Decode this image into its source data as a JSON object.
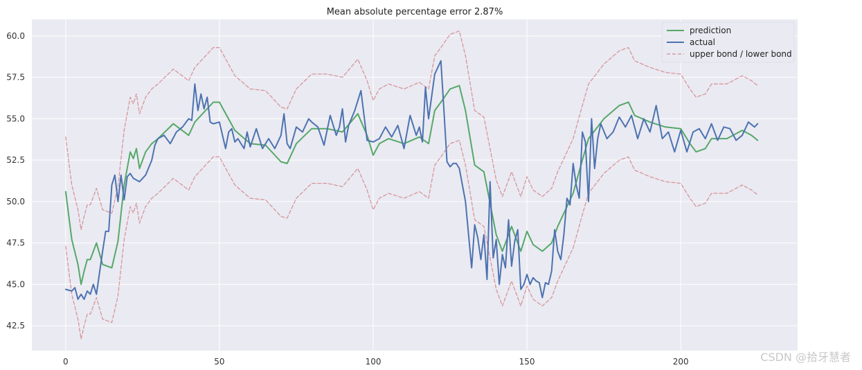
{
  "chart_data": {
    "type": "line",
    "title": "Mean absolute percentage error 2.87%",
    "xlabel": "",
    "ylabel": "",
    "xlim": [
      -11,
      238
    ],
    "ylim": [
      41.0,
      61.0
    ],
    "xticks": [
      0,
      50,
      100,
      150,
      200
    ],
    "yticks": [
      42.5,
      45.0,
      47.5,
      50.0,
      52.5,
      55.0,
      57.5,
      60.0
    ],
    "xtick_labels": [
      "0",
      "50",
      "100",
      "150",
      "200"
    ],
    "ytick_labels": [
      "42.5",
      "45.0",
      "47.5",
      "50.0",
      "52.5",
      "55.0",
      "57.5",
      "60.0"
    ],
    "grid": true,
    "legend_position": "top-right",
    "series": [
      {
        "name": "prediction",
        "color": "#55a868",
        "style": "solid",
        "x": [
          0,
          2,
          4,
          5,
          6,
          7,
          8,
          10,
          12,
          15,
          17,
          19,
          21,
          22,
          23,
          24,
          26,
          28,
          30,
          35,
          40,
          42,
          45,
          48,
          50,
          55,
          60,
          65,
          70,
          72,
          75,
          80,
          85,
          90,
          95,
          98,
          100,
          102,
          105,
          110,
          115,
          118,
          120,
          122,
          125,
          128,
          130,
          133,
          136,
          140,
          142,
          145,
          148,
          150,
          152,
          155,
          158,
          160,
          165,
          168,
          170,
          175,
          180,
          183,
          185,
          190,
          195,
          200,
          203,
          205,
          208,
          210,
          215,
          220,
          223,
          225
        ],
        "values": [
          50.6,
          47.7,
          46.2,
          45.0,
          45.8,
          46.5,
          46.5,
          47.5,
          46.2,
          46.0,
          47.6,
          51.0,
          53.0,
          52.6,
          53.2,
          52.0,
          53.0,
          53.5,
          53.8,
          54.7,
          54.0,
          54.8,
          55.4,
          56.0,
          56.0,
          54.3,
          53.5,
          53.4,
          52.4,
          52.3,
          53.5,
          54.4,
          54.4,
          54.2,
          55.3,
          54.0,
          52.8,
          53.5,
          53.8,
          53.5,
          53.9,
          53.5,
          55.5,
          56.0,
          56.8,
          57.0,
          55.5,
          52.2,
          51.8,
          48.0,
          47.0,
          48.5,
          47.0,
          48.2,
          47.4,
          47.0,
          47.5,
          48.5,
          50.5,
          52.5,
          53.8,
          55.0,
          55.8,
          56.0,
          55.2,
          54.8,
          54.5,
          54.4,
          53.5,
          53.0,
          53.2,
          53.8,
          53.8,
          54.3,
          54.0,
          53.7
        ]
      },
      {
        "name": "actual",
        "color": "#4c72b0",
        "style": "solid",
        "x": [
          0,
          2,
          3,
          4,
          5,
          6,
          7,
          8,
          9,
          10,
          12,
          13,
          14,
          15,
          16,
          17,
          18,
          19,
          20,
          21,
          22,
          24,
          26,
          28,
          29,
          30,
          32,
          34,
          36,
          38,
          40,
          41,
          42,
          43,
          44,
          45,
          46,
          47,
          48,
          50,
          52,
          53,
          54,
          55,
          56,
          58,
          59,
          60,
          62,
          64,
          66,
          68,
          70,
          71,
          72,
          73,
          75,
          77,
          79,
          80,
          82,
          84,
          86,
          88,
          89,
          90,
          91,
          92,
          94,
          96,
          98,
          100,
          102,
          104,
          106,
          108,
          110,
          112,
          114,
          115,
          116,
          117,
          118,
          120,
          122,
          123,
          124,
          125,
          126,
          127,
          128,
          130,
          132,
          133,
          134,
          135,
          136,
          137,
          138,
          139,
          140,
          141,
          142,
          143,
          144,
          145,
          146,
          147,
          148,
          149,
          150,
          151,
          152,
          153,
          154,
          155,
          156,
          157,
          158,
          159,
          160,
          161,
          162,
          163,
          164,
          165,
          166,
          167,
          168,
          169,
          170,
          171,
          172,
          173,
          174,
          176,
          178,
          180,
          182,
          184,
          186,
          188,
          190,
          192,
          194,
          196,
          198,
          200,
          202,
          204,
          206,
          208,
          210,
          212,
          214,
          216,
          218,
          220,
          222,
          224,
          225
        ],
        "values": [
          44.7,
          44.6,
          44.8,
          44.1,
          44.4,
          44.1,
          44.6,
          44.4,
          45.0,
          44.4,
          47.0,
          48.2,
          48.2,
          51.0,
          51.6,
          50.0,
          51.6,
          50.1,
          51.5,
          51.7,
          51.4,
          51.2,
          51.6,
          52.5,
          53.4,
          53.8,
          54.0,
          53.5,
          54.2,
          54.5,
          55.0,
          54.9,
          57.1,
          55.5,
          56.5,
          55.6,
          56.3,
          54.8,
          54.7,
          54.8,
          53.2,
          54.2,
          54.4,
          53.6,
          53.8,
          53.2,
          54.2,
          53.3,
          54.4,
          53.2,
          53.8,
          53.2,
          54.0,
          55.3,
          53.5,
          53.2,
          54.5,
          54.2,
          55.0,
          54.8,
          54.5,
          53.4,
          55.2,
          54.0,
          54.5,
          55.6,
          53.6,
          54.6,
          55.5,
          56.7,
          53.7,
          53.6,
          53.8,
          54.5,
          53.9,
          54.6,
          53.2,
          55.2,
          54.0,
          54.5,
          53.6,
          56.9,
          55.0,
          57.7,
          58.5,
          55.5,
          52.4,
          52.1,
          52.3,
          52.3,
          52.0,
          50.0,
          46.0,
          48.6,
          47.8,
          46.5,
          48.0,
          45.3,
          51.2,
          46.6,
          47.7,
          45.0,
          46.8,
          46.0,
          48.9,
          46.1,
          47.6,
          48.3,
          44.7,
          45.0,
          45.6,
          45.0,
          45.4,
          45.2,
          45.1,
          44.2,
          45.1,
          45.0,
          45.8,
          48.3,
          47.0,
          46.5,
          48.0,
          50.2,
          49.8,
          52.3,
          51.0,
          50.2,
          54.2,
          53.6,
          50.0,
          55.0,
          52.0,
          53.8,
          54.7,
          53.8,
          54.2,
          55.1,
          54.5,
          55.2,
          53.8,
          55.0,
          54.2,
          55.8,
          53.8,
          54.2,
          53.0,
          54.3,
          53.0,
          54.2,
          54.4,
          53.8,
          54.7,
          53.7,
          54.5,
          54.4,
          53.7,
          54.0,
          54.8,
          54.5,
          54.7
        ]
      },
      {
        "name": "upper bond / lower bond",
        "color": "#c44e52",
        "style": "dashed",
        "x": [
          0,
          2,
          4,
          5,
          6,
          7,
          8,
          10,
          12,
          15,
          17,
          19,
          21,
          22,
          23,
          24,
          26,
          28,
          30,
          35,
          40,
          42,
          45,
          48,
          50,
          55,
          60,
          65,
          70,
          72,
          75,
          80,
          85,
          90,
          95,
          98,
          100,
          102,
          105,
          110,
          115,
          118,
          120,
          122,
          125,
          128,
          130,
          133,
          136,
          140,
          142,
          145,
          148,
          150,
          152,
          155,
          158,
          160,
          165,
          168,
          170,
          175,
          180,
          183,
          185,
          190,
          195,
          200,
          203,
          205,
          208,
          210,
          215,
          220,
          223,
          225
        ],
        "values": [
          53.9,
          51.0,
          49.5,
          48.3,
          49.1,
          49.8,
          49.8,
          50.8,
          49.5,
          49.3,
          50.9,
          54.3,
          56.3,
          55.9,
          56.5,
          55.3,
          56.3,
          56.8,
          57.1,
          58.0,
          57.3,
          58.1,
          58.7,
          59.3,
          59.3,
          57.6,
          56.8,
          56.7,
          55.7,
          55.6,
          56.8,
          57.7,
          57.7,
          57.5,
          58.6,
          57.3,
          56.1,
          56.8,
          57.1,
          56.8,
          57.2,
          56.8,
          58.8,
          59.3,
          60.1,
          60.3,
          58.8,
          55.5,
          55.1,
          51.3,
          50.3,
          51.8,
          50.3,
          51.5,
          50.7,
          50.3,
          50.8,
          51.8,
          53.8,
          55.8,
          57.1,
          58.3,
          59.1,
          59.3,
          58.5,
          58.1,
          57.8,
          57.7,
          56.8,
          56.3,
          56.5,
          57.1,
          57.1,
          57.6,
          57.3,
          57.0
        ]
      },
      {
        "name": "",
        "color": "#c44e52",
        "style": "dashed",
        "x": [
          0,
          2,
          4,
          5,
          6,
          7,
          8,
          10,
          12,
          15,
          17,
          19,
          21,
          22,
          23,
          24,
          26,
          28,
          30,
          35,
          40,
          42,
          45,
          48,
          50,
          55,
          60,
          65,
          70,
          72,
          75,
          80,
          85,
          90,
          95,
          98,
          100,
          102,
          105,
          110,
          115,
          118,
          120,
          122,
          125,
          128,
          130,
          133,
          136,
          140,
          142,
          145,
          148,
          150,
          152,
          155,
          158,
          160,
          165,
          168,
          170,
          175,
          180,
          183,
          185,
          190,
          195,
          200,
          203,
          205,
          208,
          210,
          215,
          220,
          223,
          225
        ],
        "values": [
          47.3,
          44.4,
          42.9,
          41.7,
          42.5,
          43.2,
          43.2,
          44.2,
          42.9,
          42.7,
          44.3,
          47.7,
          49.7,
          49.3,
          49.9,
          48.7,
          49.7,
          50.2,
          50.5,
          51.4,
          50.7,
          51.5,
          52.1,
          52.7,
          52.7,
          51.0,
          50.2,
          50.1,
          49.1,
          49.0,
          50.2,
          51.1,
          51.1,
          50.9,
          52.0,
          50.7,
          49.5,
          50.2,
          50.5,
          50.2,
          50.6,
          50.2,
          52.2,
          52.7,
          53.5,
          53.7,
          52.2,
          48.9,
          48.5,
          44.7,
          43.7,
          45.2,
          43.7,
          44.9,
          44.1,
          43.7,
          44.2,
          45.2,
          47.2,
          49.2,
          50.5,
          51.7,
          52.5,
          52.7,
          51.9,
          51.5,
          51.2,
          51.1,
          50.2,
          49.7,
          49.9,
          50.5,
          50.5,
          51.0,
          50.7,
          50.4
        ]
      }
    ]
  },
  "watermark": "CSDN @拾牙慧者"
}
